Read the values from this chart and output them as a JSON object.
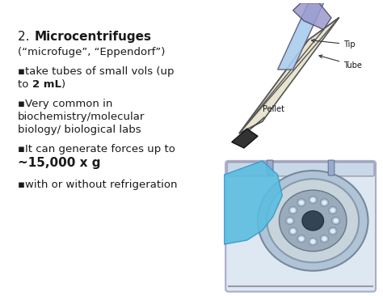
{
  "slide_bg": "#ffffff",
  "text_color": "#1a1a1a",
  "font_size_title": 11,
  "font_size_body": 9.5,
  "font_size_bold_bullet": 11,
  "title_normal": "2. ",
  "title_bold": "Microcentrifuges",
  "title_sub": "(“microfuge”, “Eppendorf”)",
  "b1a": "▪take tubes of small vols (up",
  "b1b_normal": "to ",
  "b1b_bold": "2 mL",
  "b1b_suffix": ")",
  "b2a": "▪Very common in",
  "b2b": "biochemistry/molecular",
  "b2c": "biology/ biological labs",
  "b3a": "▪It can generate forces up to",
  "b3b": "~15,000 x g",
  "b4": "▪with or without refrigeration",
  "top_img_bg": "#f5f0d8",
  "tube_body_color": "#e8e4d0",
  "tube_edge_color": "#555555",
  "tip_color": "#9999cc",
  "tip_edge_color": "#555555",
  "pellet_color": "#333333",
  "label_color": "#111111",
  "bot_img_bg": "#c0d8e8",
  "machine_color": "#dde8f0",
  "machine_edge": "#aaaaaa",
  "rotor_color": "#8899aa",
  "hand_color": "#55aadd"
}
